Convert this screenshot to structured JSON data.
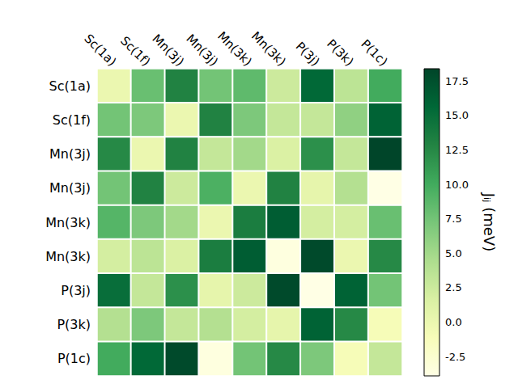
{
  "chart_data": {
    "type": "heatmap",
    "x_categories": [
      "Sc(1a)",
      "Sc(1f)",
      "Mn(3j)",
      "Mn(3j)",
      "Mn(3k)",
      "Mn(3k)",
      "P(3j)",
      "P(3k)",
      "P(1c)"
    ],
    "y_categories": [
      "Sc(1a)",
      "Sc(1f)",
      "Mn(3j)",
      "Mn(3j)",
      "Mn(3k)",
      "Mn(3k)",
      "P(3j)",
      "P(3k)",
      "P(1c)"
    ],
    "values": [
      [
        0.0,
        8.0,
        13.0,
        7.5,
        8.5,
        2.5,
        15.5,
        3.5,
        10.0
      ],
      [
        7.5,
        7.0,
        0.0,
        13.0,
        7.0,
        3.0,
        3.0,
        6.0,
        16.0
      ],
      [
        12.5,
        0.0,
        13.0,
        3.0,
        5.0,
        1.5,
        12.0,
        3.0,
        18.4
      ],
      [
        7.5,
        13.0,
        2.5,
        9.5,
        0.0,
        13.0,
        0.5,
        4.0,
        -3.9
      ],
      [
        9.0,
        7.0,
        5.0,
        0.0,
        13.5,
        16.5,
        2.0,
        2.0,
        8.0
      ],
      [
        2.0,
        3.5,
        1.5,
        13.5,
        16.5,
        -3.5,
        18.0,
        0.0,
        12.5
      ],
      [
        15.0,
        3.0,
        12.0,
        0.5,
        2.5,
        18.0,
        -3.9,
        16.0,
        7.5
      ],
      [
        4.0,
        7.0,
        3.0,
        4.0,
        2.0,
        0.5,
        16.0,
        12.5,
        -1.0
      ],
      [
        10.0,
        15.5,
        18.0,
        -3.5,
        7.5,
        12.5,
        7.0,
        -1.0,
        3.0
      ]
    ],
    "colorbar_label": "Jᵢⱼ (meV)",
    "colorbar_range": [
      -3.9,
      18.4
    ],
    "colorbar_ticks": [
      -2.5,
      {
        "value": 0,
        "label": "0.0"
      },
      2.5,
      {
        "value": 5,
        "label": "5.0"
      },
      7.5,
      {
        "value": 10,
        "label": "10.0"
      },
      12.5,
      {
        "value": 15,
        "label": "15.0"
      },
      17.5
    ]
  }
}
